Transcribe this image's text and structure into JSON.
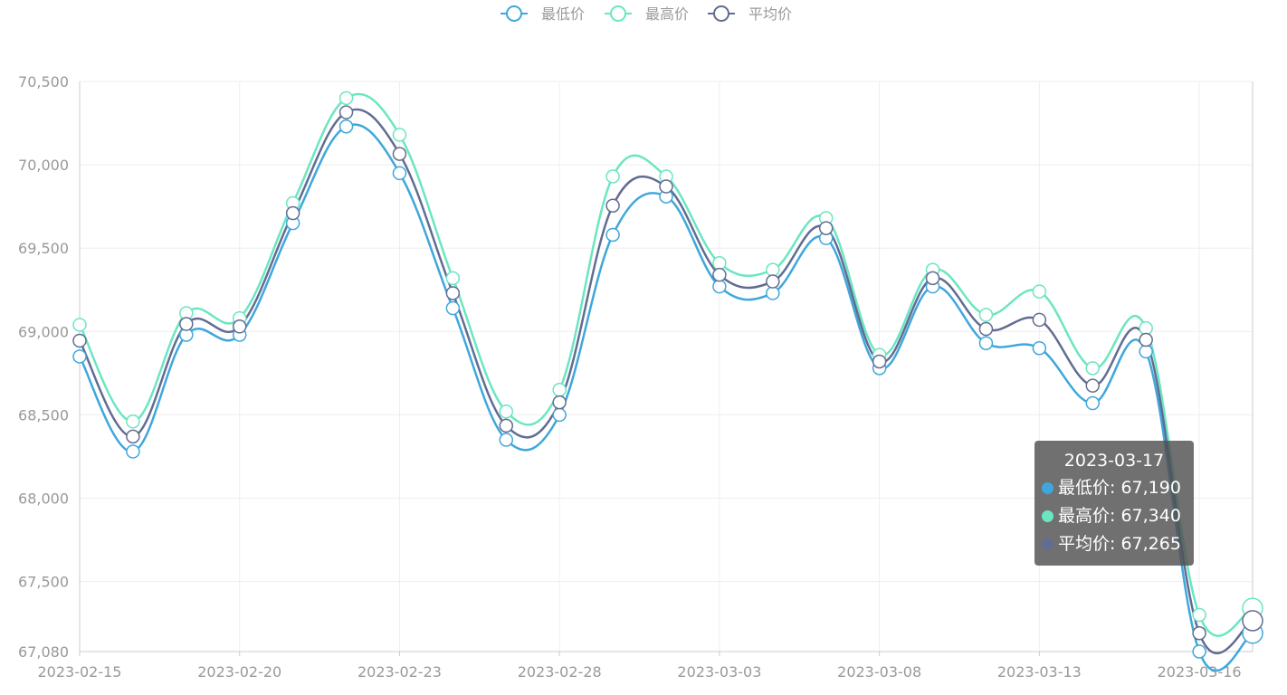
{
  "chart_data": {
    "type": "line",
    "smooth": true,
    "legend_position": "top-center",
    "grid": true,
    "ylim": [
      67080,
      70500
    ],
    "y_ticks": [
      "67,080",
      "67,500",
      "68,000",
      "68,500",
      "69,000",
      "69,500",
      "70,000",
      "70,500"
    ],
    "y_tick_values": [
      67080,
      67500,
      68000,
      68500,
      69000,
      69500,
      70000,
      70500
    ],
    "x": [
      "2023-02-15",
      "2023-02-16",
      "2023-02-17",
      "2023-02-20",
      "2023-02-21",
      "2023-02-22",
      "2023-02-23",
      "2023-02-24",
      "2023-02-27",
      "2023-02-28",
      "2023-03-01",
      "2023-03-02",
      "2023-03-03",
      "2023-03-06",
      "2023-03-07",
      "2023-03-08",
      "2023-03-09",
      "2023-03-10",
      "2023-03-13",
      "2023-03-14",
      "2023-03-15",
      "2023-03-16",
      "2023-03-17"
    ],
    "x_tick_labels": [
      "2023-02-15",
      "2023-02-20",
      "2023-02-23",
      "2023-02-28",
      "2023-03-03",
      "2023-03-08",
      "2023-03-13",
      "2023-03-16"
    ],
    "series": [
      {
        "name": "最低价",
        "color": "#3fa7dc",
        "values": [
          68850,
          68280,
          68980,
          68980,
          69650,
          70230,
          69950,
          69140,
          68350,
          68500,
          69580,
          69810,
          69270,
          69230,
          69560,
          68780,
          69270,
          68930,
          68900,
          68570,
          68880,
          67080,
          67190
        ]
      },
      {
        "name": "最高价",
        "color": "#6be6c1",
        "values": [
          69040,
          68460,
          69110,
          69080,
          69770,
          70400,
          70180,
          69320,
          68520,
          68650,
          69930,
          69930,
          69410,
          69370,
          69680,
          68860,
          69370,
          69100,
          69240,
          68780,
          69020,
          67300,
          67340
        ]
      },
      {
        "name": "平均价",
        "color": "#626c91",
        "values": [
          68945,
          68370,
          69045,
          69030,
          69710,
          70315,
          70065,
          69230,
          68435,
          68575,
          69755,
          69870,
          69340,
          69300,
          69620,
          68820,
          69320,
          69015,
          69070,
          68675,
          68950,
          67190,
          67265
        ]
      }
    ],
    "tooltip": {
      "title": "2023-03-17",
      "rows": [
        {
          "label": "最低价: 67,190",
          "color": "#3fa7dc"
        },
        {
          "label": "最高价: 67,340",
          "color": "#6be6c1"
        },
        {
          "label": "平均价: 67,265",
          "color": "#626c91"
        }
      ]
    }
  }
}
